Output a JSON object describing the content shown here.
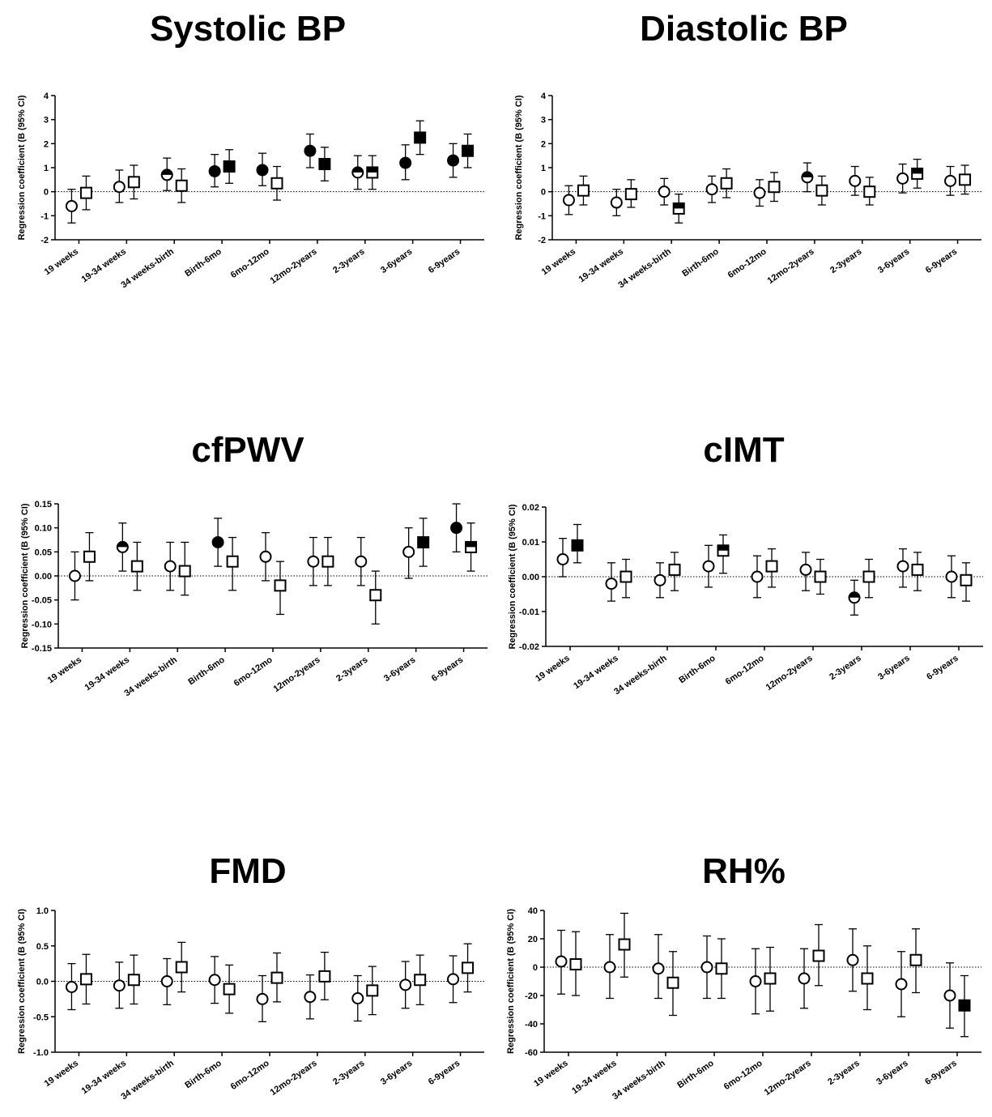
{
  "chart_data": [
    {
      "type": "scatter",
      "title": "Systolic BP",
      "ylabel": "Regression coefficient (B (95% CI)",
      "ylim": [
        -2,
        4
      ],
      "yticks": [
        -2,
        -1,
        0,
        1,
        2,
        3,
        4
      ],
      "ytick_labels": [
        "-2",
        "-1",
        "0",
        "1",
        "2",
        "3",
        "4"
      ],
      "categories": [
        "19 weeks",
        "19-34 weeks",
        "34 weeks-birth",
        "Birth-6mo",
        "6mo-12mo",
        "12mo-2years",
        "2-3years",
        "3-6years",
        "6-9years"
      ],
      "series": [
        {
          "marker": "circle",
          "values": [
            -0.6,
            0.2,
            0.7,
            0.85,
            0.9,
            1.7,
            0.8,
            1.2,
            1.3
          ],
          "lower": [
            -1.3,
            -0.45,
            0.05,
            0.2,
            0.25,
            1.0,
            0.1,
            0.5,
            0.6
          ],
          "upper": [
            0.1,
            0.9,
            1.4,
            1.55,
            1.6,
            2.4,
            1.5,
            1.95,
            2.0
          ],
          "fill": [
            "open",
            "open",
            "half",
            "filled",
            "filled",
            "filled",
            "half",
            "filled",
            "filled"
          ]
        },
        {
          "marker": "square",
          "values": [
            -0.05,
            0.4,
            0.25,
            1.05,
            0.35,
            1.15,
            0.8,
            2.25,
            1.7
          ],
          "lower": [
            -0.75,
            -0.3,
            -0.45,
            0.35,
            -0.35,
            0.45,
            0.1,
            1.55,
            1.0
          ],
          "upper": [
            0.65,
            1.1,
            0.95,
            1.75,
            1.05,
            1.85,
            1.5,
            2.95,
            2.4
          ],
          "fill": [
            "open",
            "open",
            "open",
            "filled",
            "open",
            "filled",
            "half",
            "filled",
            "filled"
          ]
        }
      ]
    },
    {
      "type": "scatter",
      "title": "Diastolic BP",
      "ylabel": "Regression coefficient (B (95% CI)",
      "ylim": [
        -2,
        4
      ],
      "yticks": [
        -2,
        -1,
        0,
        1,
        2,
        3,
        4
      ],
      "ytick_labels": [
        "-2",
        "-1",
        "0",
        "1",
        "2",
        "3",
        "4"
      ],
      "categories": [
        "19 weeks",
        "19-34 weeks",
        "34 weeks-birth",
        "Birth-6mo",
        "6mo-12mo",
        "12mo-2years",
        "2-3years",
        "3-6years",
        "6-9years"
      ],
      "series": [
        {
          "marker": "circle",
          "values": [
            -0.35,
            -0.45,
            0.0,
            0.1,
            -0.05,
            0.6,
            0.45,
            0.55,
            0.45
          ],
          "lower": [
            -0.95,
            -1.0,
            -0.55,
            -0.45,
            -0.6,
            0.0,
            -0.15,
            -0.05,
            -0.15
          ],
          "upper": [
            0.25,
            0.1,
            0.55,
            0.65,
            0.5,
            1.2,
            1.05,
            1.15,
            1.05
          ],
          "fill": [
            "open",
            "open",
            "open",
            "open",
            "open",
            "half",
            "open",
            "open",
            "open"
          ]
        },
        {
          "marker": "square",
          "values": [
            0.05,
            -0.1,
            -0.7,
            0.35,
            0.2,
            0.05,
            0.0,
            0.75,
            0.5
          ],
          "lower": [
            -0.55,
            -0.65,
            -1.3,
            -0.25,
            -0.4,
            -0.55,
            -0.55,
            0.15,
            -0.1
          ],
          "upper": [
            0.65,
            0.5,
            -0.1,
            0.95,
            0.8,
            0.65,
            0.6,
            1.35,
            1.1
          ],
          "fill": [
            "open",
            "open",
            "half",
            "open",
            "open",
            "open",
            "open",
            "half",
            "open"
          ]
        }
      ]
    },
    {
      "type": "scatter",
      "title": "cfPWV",
      "ylabel": "Regression coefficient (B (95% CI)",
      "ylim": [
        -0.15,
        0.15
      ],
      "yticks": [
        -0.15,
        -0.1,
        -0.05,
        0.0,
        0.05,
        0.1,
        0.15
      ],
      "ytick_labels": [
        "-0.15",
        "-0.10",
        "-0.05",
        "0.00",
        "0.05",
        "0.10",
        "0.15"
      ],
      "categories": [
        "19 weeks",
        "19-34 weeks",
        "34 weeks-birth",
        "Birth-6mo",
        "6mo-12mo",
        "12mo-2years",
        "2-3years",
        "3-6years",
        "6-9years"
      ],
      "series": [
        {
          "marker": "circle",
          "values": [
            0.0,
            0.06,
            0.02,
            0.07,
            0.04,
            0.03,
            0.03,
            0.05,
            0.1
          ],
          "lower": [
            -0.05,
            0.01,
            -0.03,
            0.02,
            -0.01,
            -0.02,
            -0.02,
            -0.005,
            0.05
          ],
          "upper": [
            0.05,
            0.11,
            0.07,
            0.12,
            0.09,
            0.08,
            0.08,
            0.1,
            0.15
          ],
          "fill": [
            "open",
            "half",
            "open",
            "filled",
            "open",
            "open",
            "open",
            "open",
            "filled"
          ]
        },
        {
          "marker": "square",
          "values": [
            0.04,
            0.02,
            0.01,
            0.03,
            -0.02,
            0.03,
            -0.04,
            0.07,
            0.06
          ],
          "lower": [
            -0.01,
            -0.03,
            -0.04,
            -0.03,
            -0.08,
            -0.02,
            -0.1,
            0.02,
            0.01
          ],
          "upper": [
            0.09,
            0.07,
            0.07,
            0.08,
            0.03,
            0.08,
            0.01,
            0.12,
            0.11
          ],
          "fill": [
            "open",
            "open",
            "open",
            "open",
            "open",
            "open",
            "open",
            "filled",
            "half"
          ]
        }
      ]
    },
    {
      "type": "scatter",
      "title": "cIMT",
      "ylabel": "Regression coefficient (B (95% CI)",
      "ylim": [
        -0.02,
        0.02
      ],
      "yticks": [
        -0.02,
        -0.01,
        0.0,
        0.01,
        0.02
      ],
      "ytick_labels": [
        "-0.02",
        "-0.01",
        "0.00",
        "0.01",
        "0.02"
      ],
      "categories": [
        "19 weeks",
        "19-34 weeks",
        "34 weeks-birth",
        "Birth-6mo",
        "6mo-12mo",
        "12mo-2years",
        "2-3years",
        "3-6years",
        "6-9years"
      ],
      "series": [
        {
          "marker": "circle",
          "values": [
            0.005,
            -0.002,
            -0.001,
            0.003,
            0.0,
            0.002,
            -0.006,
            0.003,
            0.0
          ],
          "lower": [
            0.0,
            -0.007,
            -0.006,
            -0.003,
            -0.006,
            -0.004,
            -0.011,
            -0.003,
            -0.006
          ],
          "upper": [
            0.011,
            0.004,
            0.004,
            0.009,
            0.006,
            0.007,
            -0.001,
            0.008,
            0.006
          ],
          "fill": [
            "open",
            "open",
            "open",
            "open",
            "open",
            "open",
            "half",
            "open",
            "open"
          ]
        },
        {
          "marker": "square",
          "values": [
            0.009,
            0.0,
            0.002,
            0.0075,
            0.003,
            0.0,
            0.0,
            0.002,
            -0.001
          ],
          "lower": [
            0.004,
            -0.006,
            -0.004,
            0.001,
            -0.003,
            -0.005,
            -0.006,
            -0.004,
            -0.007
          ],
          "upper": [
            0.015,
            0.005,
            0.007,
            0.012,
            0.008,
            0.005,
            0.005,
            0.007,
            0.004
          ],
          "fill": [
            "filled",
            "open",
            "open",
            "half",
            "open",
            "open",
            "open",
            "open",
            "open"
          ]
        }
      ]
    },
    {
      "type": "scatter",
      "title": "FMD",
      "ylabel": "Regression coefficient (B (95% CI)",
      "ylim": [
        -1.0,
        1.0
      ],
      "yticks": [
        -1.0,
        -0.5,
        0.0,
        0.5,
        1.0
      ],
      "ytick_labels": [
        "-1.0",
        "-0.5",
        "0.0",
        "0.5",
        "1.0"
      ],
      "categories": [
        "19 weeks",
        "19-34 weeks",
        "34 weeks-birth",
        "Birth-6mo",
        "6mo-12mo",
        "12mo-2years",
        "2-3years",
        "3-6years",
        "6-9years"
      ],
      "series": [
        {
          "marker": "circle",
          "values": [
            -0.08,
            -0.06,
            0.0,
            0.02,
            -0.25,
            -0.22,
            -0.24,
            -0.05,
            0.03
          ],
          "lower": [
            -0.4,
            -0.38,
            -0.33,
            -0.31,
            -0.57,
            -0.53,
            -0.56,
            -0.38,
            -0.3
          ],
          "upper": [
            0.25,
            0.27,
            0.32,
            0.35,
            0.08,
            0.09,
            0.08,
            0.28,
            0.36
          ],
          "fill": [
            "open",
            "open",
            "open",
            "open",
            "open",
            "open",
            "open",
            "open",
            "open"
          ]
        },
        {
          "marker": "square",
          "values": [
            0.03,
            0.02,
            0.2,
            -0.11,
            0.05,
            0.07,
            -0.13,
            0.02,
            0.19
          ],
          "lower": [
            -0.32,
            -0.32,
            -0.15,
            -0.45,
            -0.29,
            -0.26,
            -0.47,
            -0.33,
            -0.15
          ],
          "upper": [
            0.38,
            0.37,
            0.55,
            0.23,
            0.4,
            0.41,
            0.21,
            0.37,
            0.53
          ],
          "fill": [
            "open",
            "open",
            "open",
            "open",
            "open",
            "open",
            "open",
            "open",
            "open"
          ]
        }
      ]
    },
    {
      "type": "scatter",
      "title": "RH%",
      "ylabel": "Regression coefficient (B (95% CI)",
      "ylim": [
        -60,
        40
      ],
      "yticks": [
        -60,
        -40,
        -20,
        0,
        20,
        40
      ],
      "ytick_labels": [
        "-60",
        "-40",
        "-20",
        "0",
        "20",
        "40"
      ],
      "categories": [
        "19 weeks",
        "19-34 weeks",
        "34 weeks-birth",
        "Birth-6mo",
        "6mo-12mo",
        "12mo-2years",
        "2-3years",
        "3-6years",
        "6-9years"
      ],
      "series": [
        {
          "marker": "circle",
          "values": [
            4,
            0,
            -1,
            0,
            -10,
            -8,
            5,
            -12,
            -20
          ],
          "lower": [
            -19,
            -22,
            -22,
            -22,
            -33,
            -29,
            -17,
            -35,
            -43
          ],
          "upper": [
            26,
            23,
            23,
            22,
            13,
            13,
            27,
            11,
            3
          ],
          "fill": [
            "open",
            "open",
            "open",
            "open",
            "open",
            "open",
            "open",
            "open",
            "open"
          ]
        },
        {
          "marker": "square",
          "values": [
            2,
            16,
            -11,
            -1,
            -8,
            8,
            -8,
            5,
            -27
          ],
          "lower": [
            -20,
            -7,
            -34,
            -22,
            -31,
            -13,
            -30,
            -18,
            -49
          ],
          "upper": [
            25,
            38,
            11,
            20,
            14,
            30,
            15,
            27,
            -6
          ],
          "fill": [
            "open",
            "open",
            "open",
            "open",
            "open",
            "open",
            "open",
            "open",
            "filled"
          ]
        }
      ]
    }
  ]
}
